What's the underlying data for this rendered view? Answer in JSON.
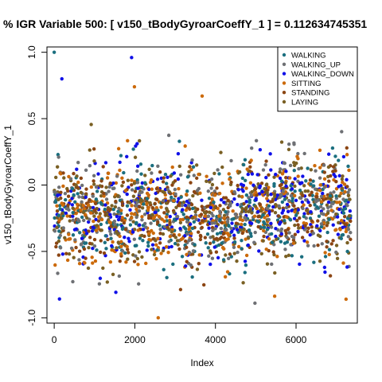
{
  "chart_data": {
    "type": "scatter",
    "title": "% IGR Variable 500: [ v150_tBodyGyroarCoeffY_1 ] =  0.112634745351",
    "xlabel": "Index",
    "ylabel": "v150_tBodyGyroarCoeffY_1",
    "xlim": [
      -180,
      7520
    ],
    "ylim": [
      -1.04,
      1.04
    ],
    "xticks": [
      "0",
      "2000",
      "4000",
      "6000"
    ],
    "xtick_values": [
      0,
      2000,
      4000,
      6000
    ],
    "yticks": [
      "-1.0",
      "-0.5",
      "0.0",
      "0.5",
      "1.0"
    ],
    "ytick_values": [
      -1.0,
      -0.5,
      0.0,
      0.5,
      1.0
    ],
    "n_points": 7352,
    "legend_position": "top-right",
    "series": [
      {
        "name": "WALKING",
        "color": "#1B6F7F"
      },
      {
        "name": "WALKING_UP",
        "color": "#6E7074"
      },
      {
        "name": "WALKING_DOWN",
        "color": "#1010E8"
      },
      {
        "name": "SITTING",
        "color": "#CC6A0A"
      },
      {
        "name": "STANDING",
        "color": "#8B4513"
      },
      {
        "name": "LAYING",
        "color": "#7A6024"
      }
    ],
    "highlights": [
      {
        "series": 0,
        "x": 0,
        "y": 1.0
      },
      {
        "series": 2,
        "x": 190,
        "y": 0.8
      },
      {
        "series": 2,
        "x": 1920,
        "y": 0.96
      },
      {
        "series": 3,
        "x": 1990,
        "y": 0.74
      },
      {
        "series": 3,
        "x": 3670,
        "y": 0.67
      },
      {
        "series": 3,
        "x": 2580,
        "y": -1.0
      },
      {
        "series": 1,
        "x": 4980,
        "y": -0.89
      },
      {
        "series": 3,
        "x": 7240,
        "y": -0.86
      }
    ]
  }
}
